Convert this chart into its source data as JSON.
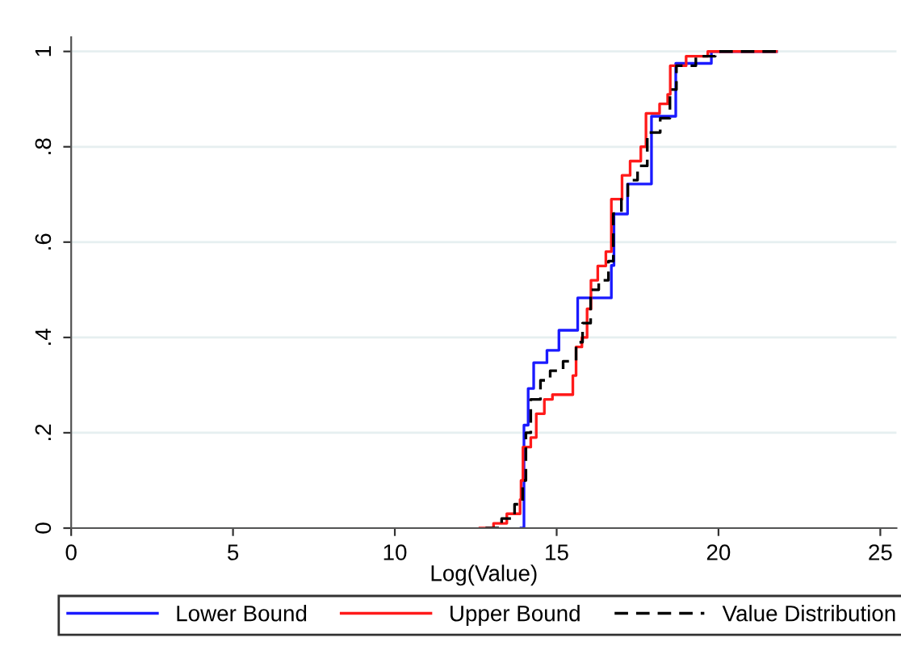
{
  "chart_data": {
    "type": "step",
    "xlabel": "Log(Value)",
    "xlim": [
      0,
      25.5
    ],
    "xticks": [
      0,
      5,
      10,
      15,
      20,
      25
    ],
    "ylim": [
      0,
      1.03
    ],
    "yticks": [
      {
        "value": 0,
        "label": "0"
      },
      {
        "value": 0.2,
        "label": ".2"
      },
      {
        "value": 0.4,
        "label": ".4"
      },
      {
        "value": 0.6,
        "label": ".6"
      },
      {
        "value": 0.8,
        "label": ".8"
      },
      {
        "value": 1,
        "label": "1"
      }
    ],
    "grid": "y",
    "legend": "bottom",
    "series": [
      {
        "name": "Lower Bound",
        "color": "#1a1aff",
        "line_style": "solid",
        "x": [
          13.9,
          13.99,
          14.12,
          14.29,
          14.7,
          15.07,
          15.65,
          16.69,
          16.77,
          17.19,
          17.93,
          18.68,
          19.78,
          21.79
        ],
        "values": [
          0,
          0.216,
          0.293,
          0.347,
          0.373,
          0.415,
          0.483,
          0.551,
          0.659,
          0.722,
          0.864,
          0.975,
          1.0,
          1.0
        ]
      },
      {
        "name": "Upper Bound",
        "color": "#ff1a1a",
        "line_style": "solid",
        "x": [
          12.63,
          13.05,
          13.46,
          13.87,
          13.9,
          13.96,
          14.2,
          14.37,
          14.62,
          14.87,
          15.5,
          15.6,
          15.78,
          15.94,
          16.06,
          16.27,
          16.52,
          16.69,
          17.02,
          17.27,
          17.6,
          17.76,
          18.18,
          18.43,
          18.51,
          19.0,
          19.67,
          21.79
        ],
        "values": [
          0,
          0.01,
          0.03,
          0.06,
          0.1,
          0.17,
          0.19,
          0.24,
          0.27,
          0.28,
          0.32,
          0.38,
          0.4,
          0.46,
          0.52,
          0.55,
          0.58,
          0.69,
          0.74,
          0.77,
          0.8,
          0.87,
          0.89,
          0.91,
          0.97,
          0.99,
          1.0,
          1.0
        ]
      },
      {
        "name": "Value Distribution",
        "color": "#000000",
        "line_style": "dashed",
        "x": [
          12.8,
          13.3,
          13.7,
          13.95,
          14.05,
          14.2,
          14.5,
          14.8,
          15.2,
          15.6,
          15.8,
          16.05,
          16.3,
          16.6,
          16.75,
          17.0,
          17.2,
          17.5,
          17.8,
          18.2,
          18.5,
          18.7,
          19.3,
          19.9,
          21.79
        ],
        "values": [
          0,
          0.02,
          0.05,
          0.1,
          0.2,
          0.27,
          0.31,
          0.33,
          0.35,
          0.39,
          0.43,
          0.5,
          0.52,
          0.56,
          0.66,
          0.69,
          0.73,
          0.76,
          0.83,
          0.86,
          0.92,
          0.97,
          0.99,
          1.0,
          1.0
        ]
      }
    ]
  }
}
